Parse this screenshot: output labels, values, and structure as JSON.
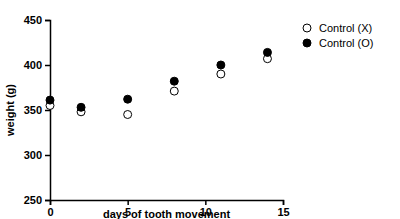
{
  "chart_data": {
    "type": "scatter",
    "x_label": "days of tooth movement",
    "y_label": "weight (g)",
    "x": [
      0,
      2,
      5,
      8,
      11,
      14
    ],
    "series": [
      {
        "name": "Control (X)",
        "color": "#000000",
        "marker": "circle-open",
        "values": [
          355,
          348,
          345,
          371,
          390,
          407
        ]
      },
      {
        "name": "Control (O)",
        "color": "#000000",
        "marker": "circle",
        "values": [
          361,
          353,
          362,
          382,
          400,
          414
        ]
      }
    ],
    "xlim": [
      0,
      15
    ],
    "xticks": [
      0,
      5,
      10,
      15
    ],
    "ylim": [
      250,
      450
    ],
    "yticks": [
      250,
      300,
      350,
      400,
      450
    ],
    "grid": false,
    "legend": "top-right"
  }
}
